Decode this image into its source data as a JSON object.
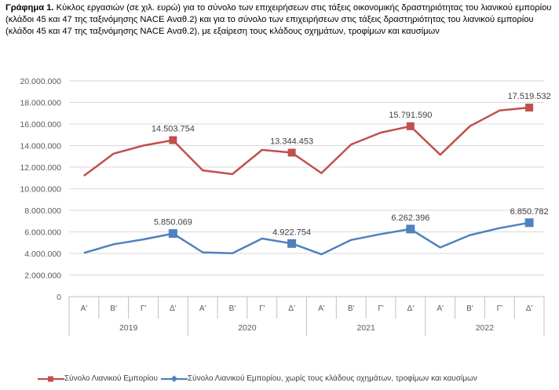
{
  "caption": {
    "label": "Γράφημα 1.",
    "text": " Κύκλος εργασιών (σε χιλ. ευρώ) για το σύνολο των επιχειρήσεων στις τάξεις οικονομικής δραστηριότητας του λιανικού εμπορίου (κλάδοι 45 και 47 της ταξινόμησης NACE Αναθ.2) και για το σύνολο των επιχειρήσεων στις τάξεις δραστηριότητας του λιανικού εμπορίου (κλάδοι 45 και 47 της ταξινόμησης NACE Αναθ.2), με εξαίρεση τους κλάδους οχημάτων, τροφίμων και καυσίμων"
  },
  "chart_data": {
    "type": "line",
    "title": "",
    "xlabel": "",
    "ylabel": "",
    "ylim": [
      0,
      20000000
    ],
    "yticks": [
      "0",
      "2.000.000",
      "4.000.000",
      "6.000.000",
      "8.000.000",
      "10.000.000",
      "12.000.000",
      "14.000.000",
      "16.000.000",
      "18.000.000",
      "20.000.000"
    ],
    "categories": [
      "Α'",
      "Β'",
      "Γ'",
      "Δ'",
      "Α'",
      "Β'",
      "Γ'",
      "Δ'",
      "Α'",
      "Β'",
      "Γ'",
      "Δ'",
      "Α'",
      "Β'",
      "Γ'",
      "Δ'"
    ],
    "years": [
      "2019",
      "2020",
      "2021",
      "2022"
    ],
    "grid": true,
    "legend_position": "bottom",
    "series": [
      {
        "name": "Σύνολο Λιανικού Εμπορίου",
        "color": "#c0504d",
        "values": [
          11200000,
          13250000,
          14000000,
          14503754,
          11700000,
          11350000,
          13600000,
          13344453,
          11450000,
          14100000,
          15200000,
          15791590,
          13150000,
          15800000,
          17250000,
          17519532
        ],
        "markers_at": [
          3,
          7,
          11,
          15
        ],
        "labels": {
          "3": "14.503.754",
          "7": "13.344.453",
          "11": "15.791.590",
          "15": "17.519.532"
        }
      },
      {
        "name": "Σύνολο Λιανικού Εμπορίου, χωρίς τους κλάδους οχημάτων, τροφίμων και καυσίμων",
        "color": "#4f81bd",
        "values": [
          4050000,
          4850000,
          5300000,
          5850069,
          4100000,
          4020000,
          5380000,
          4922754,
          3920000,
          5250000,
          5800000,
          6262396,
          4550000,
          5700000,
          6350000,
          6850782
        ],
        "markers_at": [
          3,
          7,
          11,
          15
        ],
        "labels": {
          "3": "5.850.069",
          "7": "4.922.754",
          "11": "6.262.396",
          "15": "6.850.782"
        }
      }
    ]
  }
}
